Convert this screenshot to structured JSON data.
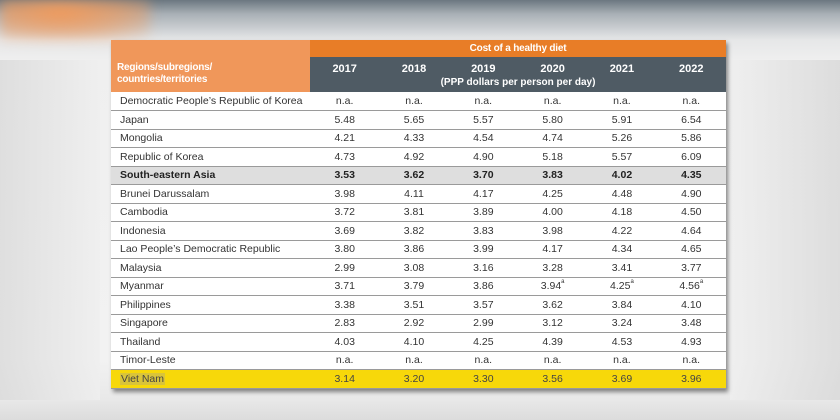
{
  "table": {
    "row_header_label_line1": "Regions/subregions/",
    "row_header_label_line2": "countries/territories",
    "title": "Cost of a healthy diet",
    "unit": "(PPP dollars per person per day)",
    "years": [
      "2017",
      "2018",
      "2019",
      "2020",
      "2021",
      "2022"
    ],
    "rows": [
      {
        "name": "Democratic People’s Republic of Korea",
        "values": [
          "n.a.",
          "n.a.",
          "n.a.",
          "n.a.",
          "n.a.",
          "n.a."
        ],
        "notes": [
          "",
          "",
          "",
          "",
          "",
          ""
        ]
      },
      {
        "name": "Japan",
        "values": [
          "5.48",
          "5.65",
          "5.57",
          "5.80",
          "5.91",
          "6.54"
        ],
        "notes": [
          "",
          "",
          "",
          "",
          "",
          ""
        ]
      },
      {
        "name": "Mongolia",
        "values": [
          "4.21",
          "4.33",
          "4.54",
          "4.74",
          "5.26",
          "5.86"
        ],
        "notes": [
          "",
          "",
          "",
          "",
          "",
          ""
        ]
      },
      {
        "name": "Republic of Korea",
        "values": [
          "4.73",
          "4.92",
          "4.90",
          "5.18",
          "5.57",
          "6.09"
        ],
        "notes": [
          "",
          "",
          "",
          "",
          "",
          ""
        ]
      },
      {
        "name": "South-eastern Asia",
        "values": [
          "3.53",
          "3.62",
          "3.70",
          "3.83",
          "4.02",
          "4.35"
        ],
        "notes": [
          "",
          "",
          "",
          "",
          "",
          ""
        ]
      },
      {
        "name": "Brunei Darussalam",
        "values": [
          "3.98",
          "4.11",
          "4.17",
          "4.25",
          "4.48",
          "4.90"
        ],
        "notes": [
          "",
          "",
          "",
          "",
          "",
          ""
        ]
      },
      {
        "name": "Cambodia",
        "values": [
          "3.72",
          "3.81",
          "3.89",
          "4.00",
          "4.18",
          "4.50"
        ],
        "notes": [
          "",
          "",
          "",
          "",
          "",
          ""
        ]
      },
      {
        "name": "Indonesia",
        "values": [
          "3.69",
          "3.82",
          "3.83",
          "3.98",
          "4.22",
          "4.64"
        ],
        "notes": [
          "",
          "",
          "",
          "",
          "",
          ""
        ]
      },
      {
        "name": "Lao People’s Democratic Republic",
        "values": [
          "3.80",
          "3.86",
          "3.99",
          "4.17",
          "4.34",
          "4.65"
        ],
        "notes": [
          "",
          "",
          "",
          "",
          "",
          ""
        ]
      },
      {
        "name": "Malaysia",
        "values": [
          "2.99",
          "3.08",
          "3.16",
          "3.28",
          "3.41",
          "3.77"
        ],
        "notes": [
          "",
          "",
          "",
          "",
          "",
          ""
        ]
      },
      {
        "name": "Myanmar",
        "values": [
          "3.71",
          "3.79",
          "3.86",
          "3.94",
          "4.25",
          "4.56"
        ],
        "notes": [
          "",
          "",
          "",
          "a",
          "a",
          "a"
        ]
      },
      {
        "name": "Philippines",
        "values": [
          "3.38",
          "3.51",
          "3.57",
          "3.62",
          "3.84",
          "4.10"
        ],
        "notes": [
          "",
          "",
          "",
          "",
          "",
          ""
        ]
      },
      {
        "name": "Singapore",
        "values": [
          "2.83",
          "2.92",
          "2.99",
          "3.12",
          "3.24",
          "3.48"
        ],
        "notes": [
          "",
          "",
          "",
          "",
          "",
          ""
        ]
      },
      {
        "name": "Thailand",
        "values": [
          "4.03",
          "4.10",
          "4.25",
          "4.39",
          "4.53",
          "4.93"
        ],
        "notes": [
          "",
          "",
          "",
          "",
          "",
          ""
        ]
      },
      {
        "name": "Timor-Leste",
        "values": [
          "n.a.",
          "n.a.",
          "n.a.",
          "n.a.",
          "n.a.",
          "n.a."
        ],
        "notes": [
          "",
          "",
          "",
          "",
          "",
          ""
        ]
      },
      {
        "name": "Viet Nam",
        "values": [
          "3.14",
          "3.20",
          "3.30",
          "3.56",
          "3.69",
          "3.96"
        ],
        "notes": [
          "",
          "",
          "",
          "",
          "",
          ""
        ]
      }
    ],
    "aggregate_row_index": 4,
    "highlighted_row_index": 15,
    "colors": {
      "title_band": "#e87d27",
      "row_header_band": "#f0975a",
      "year_band": "#4f5b64",
      "aggregate_row": "#dedede",
      "highlight_row": "#f7d80a"
    }
  }
}
